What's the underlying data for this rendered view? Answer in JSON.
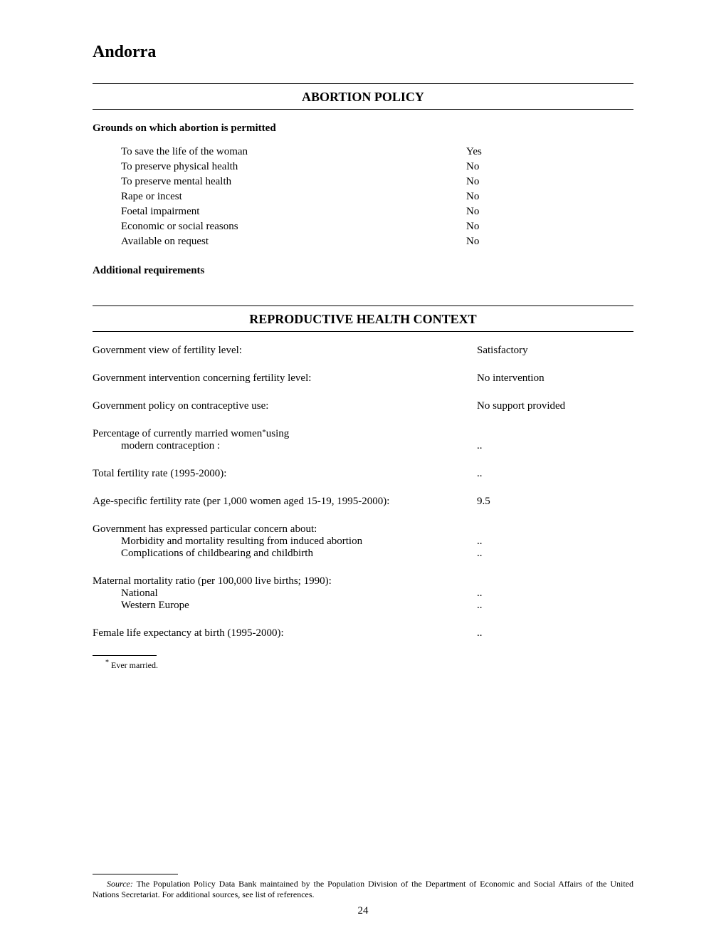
{
  "country": "Andorra",
  "section1": {
    "title": "ABORTION POLICY",
    "grounds_heading": "Grounds on which abortion is permitted",
    "grounds": [
      {
        "label": "To save the life of the woman",
        "value": "Yes"
      },
      {
        "label": "To preserve physical health",
        "value": "No"
      },
      {
        "label": "To preserve mental health",
        "value": "No"
      },
      {
        "label": "Rape or incest",
        "value": "No"
      },
      {
        "label": "Foetal impairment",
        "value": "No"
      },
      {
        "label": "Economic or social reasons",
        "value": "No"
      },
      {
        "label": "Available on request",
        "value": "No"
      }
    ],
    "additional_req": "Additional requirements"
  },
  "section2": {
    "title": "REPRODUCTIVE HEALTH CONTEXT",
    "rows": {
      "view": {
        "label": "Government view of fertility level:",
        "value": "Satisfactory"
      },
      "intervention": {
        "label": "Government intervention concerning fertility level:",
        "value": "No intervention"
      },
      "policy": {
        "label": "Government policy on contraceptive use:",
        "value": "No support provided"
      },
      "pct_label1": "Percentage of currently married women",
      "pct_label2": "modern contraception :",
      "pct_value": "..",
      "tfr": {
        "label": "Total fertility rate (1995-2000):",
        "value": ".."
      },
      "asfr": {
        "label": "Age-specific fertility rate (per 1,000 women aged 15-19, 1995-2000):",
        "value": "9.5"
      },
      "concern_title": "Government has expressed particular concern about:",
      "concern1": {
        "label": "Morbidity and mortality resulting from induced abortion",
        "value": ".."
      },
      "concern2": {
        "label": "Complications of childbearing and childbirth",
        "value": ".."
      },
      "mmr_title": "Maternal mortality ratio (per 100,000 live births; 1990):",
      "mmr_national": {
        "label": "National",
        "value": ".."
      },
      "mmr_region": {
        "label": "Western Europe",
        "value": ".."
      },
      "fle": {
        "label": "Female life expectancy at birth (1995-2000):",
        "value": ".."
      }
    }
  },
  "footnote": {
    "marker": "*",
    "text": " Ever married.",
    "using": " using"
  },
  "source": {
    "label": "Source:",
    "text": "   The Population Policy Data Bank maintained by the Population Division of the Department of Economic and Social Affairs of the United Nations Secretariat.  For additional sources, see list of references."
  },
  "page_number": "24"
}
